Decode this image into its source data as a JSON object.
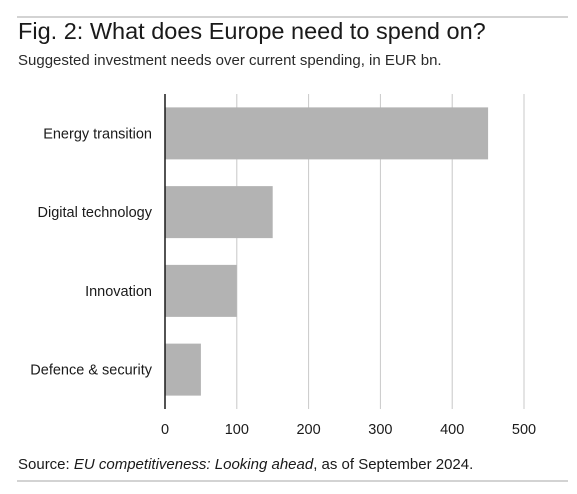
{
  "title": "Fig. 2: What does Europe need to spend on?",
  "subtitle": "Suggested investment needs over current spending, in EUR bn.",
  "source": {
    "prefix": "Source: ",
    "title": "EU competitiveness: Looking ahead",
    "suffix": ", as of September 2024."
  },
  "colors": {
    "bar": "#b3b3b3",
    "grid": "#c8c8c8",
    "axis": "#1a1a1a",
    "rule": "#d3d3d3"
  },
  "chart_data": {
    "type": "bar",
    "orientation": "horizontal",
    "categories": [
      "Energy transition",
      "Digital technology",
      "Innovation",
      "Defence & security"
    ],
    "values": [
      450,
      150,
      100,
      50
    ],
    "xlim": [
      0,
      500
    ],
    "xticks": [
      0,
      100,
      200,
      300,
      400,
      500
    ],
    "grid": true
  }
}
